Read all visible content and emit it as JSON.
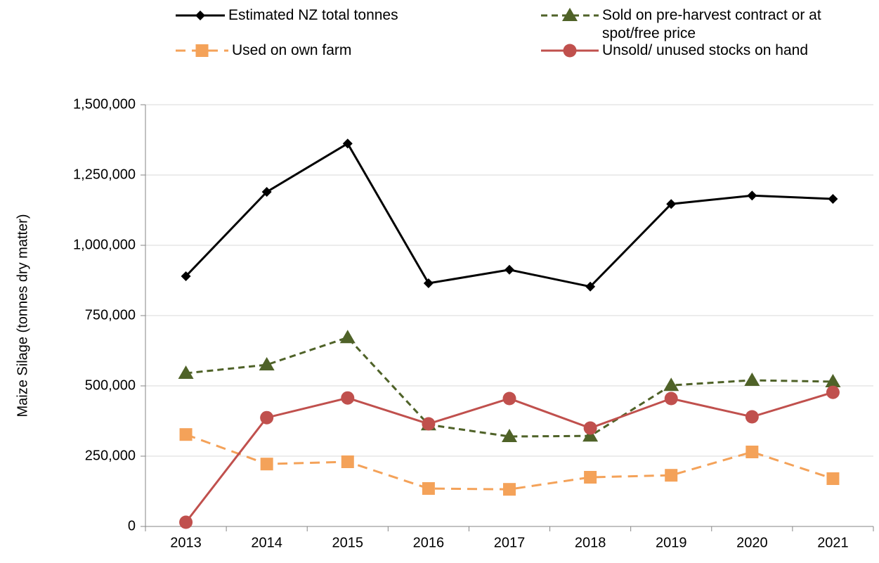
{
  "chart_data": {
    "type": "line",
    "y_axis_label": "Maize Silage (tonnes dry matter)",
    "categories": [
      "2013",
      "2014",
      "2015",
      "2016",
      "2017",
      "2018",
      "2019",
      "2020",
      "2021"
    ],
    "ylim": [
      0,
      1500000
    ],
    "yticks": [
      0,
      {
        "value": 250000,
        "label": "250,000"
      },
      {
        "value": 500000,
        "label": "500,000"
      },
      {
        "value": 750000,
        "label": "750,000"
      },
      {
        "value": 1000000,
        "label": "1,000,000"
      },
      {
        "value": 1250000,
        "label": "1,250,000"
      },
      {
        "value": 1500000,
        "label": "1,500,000"
      }
    ],
    "grid": true,
    "legend": "top",
    "series": [
      {
        "name": "Estimated NZ total tonnes",
        "color": "#000000",
        "marker": "diamond",
        "line_style": "solid",
        "values": [
          890000,
          1190000,
          1362000,
          865000,
          913000,
          853000,
          1147000,
          1177000,
          1165000
        ]
      },
      {
        "name": "Sold on pre-harvest contract or at spot/free price",
        "color": "#4f6228",
        "marker": "triangle",
        "line_style": "dashed",
        "values": [
          545000,
          575000,
          672000,
          362000,
          320000,
          322000,
          502000,
          520000,
          515000
        ]
      },
      {
        "name": "Used on own farm",
        "color": "#f4a259",
        "marker": "square",
        "line_style": "dashed",
        "values": [
          327000,
          222000,
          230000,
          135000,
          132000,
          175000,
          182000,
          265000,
          170000
        ]
      },
      {
        "name": "Unsold/ unused stocks on hand",
        "color": "#c0504d",
        "marker": "circle",
        "line_style": "solid",
        "values": [
          15000,
          387000,
          457000,
          365000,
          455000,
          350000,
          455000,
          390000,
          477000
        ]
      }
    ]
  }
}
